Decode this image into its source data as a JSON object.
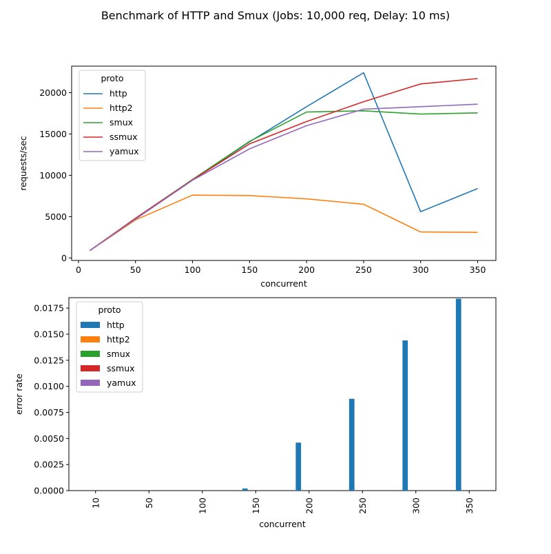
{
  "figure": {
    "title": "Benchmark of HTTP and Smux (Jobs: 10,000 req, Delay: 10 ms)"
  },
  "colors": {
    "http": "#1f77b4",
    "http2": "#ff7f0e",
    "smux": "#2ca02c",
    "ssmux": "#d62728",
    "yamux": "#9467bd"
  },
  "chart_data": [
    {
      "type": "line",
      "xlabel": "concurrent",
      "ylabel": "requests/sec",
      "legend_title": "proto",
      "legend_position": "top-left",
      "grid": false,
      "xlim": [
        -6,
        366
      ],
      "ylim": [
        -300,
        23200
      ],
      "xticks": [
        0,
        50,
        100,
        150,
        200,
        250,
        300,
        350
      ],
      "yticks": [
        0,
        5000,
        10000,
        15000,
        20000
      ],
      "x": [
        10,
        50,
        100,
        150,
        200,
        250,
        300,
        350
      ],
      "series": [
        {
          "name": "http",
          "values": [
            900,
            4700,
            9450,
            14050,
            18300,
            22400,
            5600,
            8400
          ]
        },
        {
          "name": "http2",
          "values": [
            900,
            4600,
            7600,
            7550,
            7150,
            6500,
            3150,
            3100
          ]
        },
        {
          "name": "smux",
          "values": [
            900,
            4800,
            9500,
            14100,
            17650,
            17800,
            17400,
            17550
          ]
        },
        {
          "name": "ssmux",
          "values": [
            900,
            4800,
            9450,
            13800,
            16500,
            18900,
            21050,
            21700
          ]
        },
        {
          "name": "yamux",
          "values": [
            900,
            4700,
            9400,
            13200,
            16000,
            18000,
            18300,
            18600
          ]
        }
      ]
    },
    {
      "type": "bar",
      "xlabel": "concurrent",
      "ylabel": "error rate",
      "legend_title": "proto",
      "legend_position": "top-left",
      "grid": false,
      "ylim": [
        0,
        0.0185
      ],
      "yticks": [
        0.0,
        0.0025,
        0.005,
        0.0075,
        0.01,
        0.0125,
        0.015,
        0.0175
      ],
      "ytick_labels": [
        "0.0000",
        "0.0025",
        "0.0050",
        "0.0075",
        "0.0100",
        "0.0125",
        "0.0150",
        "0.0175"
      ],
      "categories": [
        "10",
        "50",
        "100",
        "150",
        "200",
        "250",
        "300",
        "350"
      ],
      "series": [
        {
          "name": "http",
          "values": [
            0,
            0,
            0,
            0.0002,
            0.0046,
            0.0088,
            0.0144,
            0.0184
          ]
        },
        {
          "name": "http2",
          "values": [
            0,
            0,
            0,
            0,
            0,
            0,
            0,
            0
          ]
        },
        {
          "name": "smux",
          "values": [
            0,
            0,
            0,
            0,
            0,
            0,
            0,
            0
          ]
        },
        {
          "name": "ssmux",
          "values": [
            0,
            0,
            0,
            0,
            0,
            0,
            0,
            0
          ]
        },
        {
          "name": "yamux",
          "values": [
            0,
            0,
            0,
            0,
            0,
            0,
            0,
            0
          ]
        }
      ]
    }
  ]
}
